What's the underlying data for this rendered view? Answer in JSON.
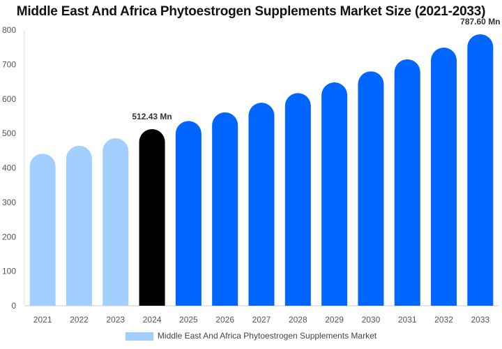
{
  "chart_data": {
    "type": "bar",
    "title": "Middle East And Africa Phytoestrogen Supplements Market Size (2021-2033)",
    "categories": [
      "2021",
      "2022",
      "2023",
      "2024",
      "2025",
      "2026",
      "2027",
      "2028",
      "2029",
      "2030",
      "2031",
      "2032",
      "2033"
    ],
    "series": [
      {
        "name": "Middle East And Africa Phytoestrogen Supplements Market",
        "values": [
          441,
          464,
          486,
          512.43,
          536,
          561,
          589,
          617,
          648,
          680,
          715,
          749,
          787.6
        ]
      }
    ],
    "data_labels": {
      "3": "512.43 Mn",
      "12": "787.60 Mn"
    },
    "ylim": [
      0,
      800
    ],
    "yticks": [
      0,
      100,
      200,
      300,
      400,
      500,
      600,
      700,
      800
    ],
    "grid": false,
    "legend": "bottom",
    "colors": {
      "historical": "#a3cfff",
      "current": "#000000",
      "forecast": "#0066ff"
    }
  }
}
